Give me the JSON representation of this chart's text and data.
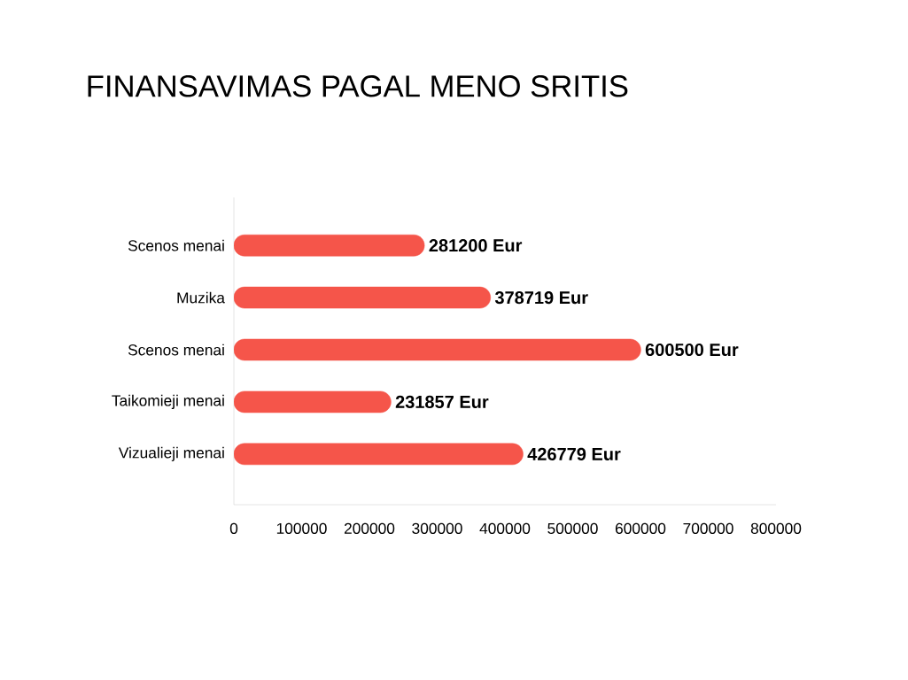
{
  "chart_data": {
    "type": "bar",
    "title": "FINANSAVIMAS PAGAL MENO SRITIS",
    "orientation": "horizontal",
    "categories": [
      "Scenos menai",
      "Muzika",
      "Scenos menai",
      "Taikomieji menai",
      "Vizualieji menai"
    ],
    "values": [
      281200,
      378719,
      600500,
      231857,
      426779
    ],
    "value_labels": [
      "281200 Eur",
      "378719 Eur",
      "600500 Eur",
      "231857 Eur",
      "426779 Eur"
    ],
    "color": "#f5554a",
    "xlim": [
      0,
      800000
    ],
    "xticks": [
      0,
      100000,
      200000,
      300000,
      400000,
      500000,
      600000,
      700000,
      800000
    ]
  }
}
